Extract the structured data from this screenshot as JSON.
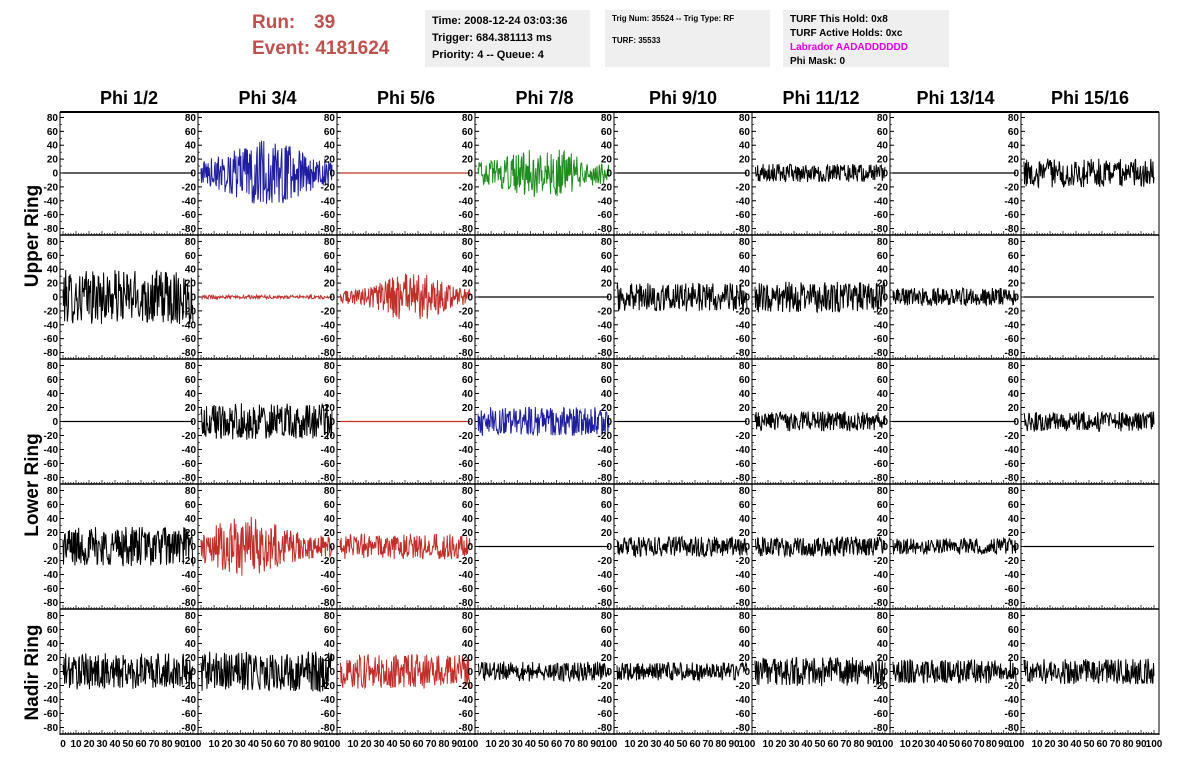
{
  "header": {
    "run_label": "Run:",
    "run_value": "39",
    "event_label": "Event:",
    "event_value": "4181624"
  },
  "time_box": {
    "time": "Time: 2008-12-24 03:03:36",
    "trigger": "Trigger: 684.381113 ms",
    "priority": "Priority: 4 -- Queue: 4"
  },
  "trig_box": {
    "trig": "Trig Num: 35524 -- Trig Type: RF",
    "turf": "TURF: 35533"
  },
  "turf_box": {
    "this_hold": "TURF This Hold: 0x8",
    "active_holds": "TURF Active Holds: 0xc",
    "labrador": "Labrador AADADDDDDD",
    "phi_mask": "Phi Mask: 0"
  },
  "colors": {
    "header_red": "#c0504d",
    "labrador_magenta": "#e000e0",
    "trace_black": "#000000",
    "trace_blue": "#1f1f9e",
    "trace_red": "#c0302b",
    "trace_green": "#1e8c1e"
  },
  "chart_data": {
    "type": "line",
    "columns": [
      "Phi 1/2",
      "Phi 3/4",
      "Phi 5/6",
      "Phi 7/8",
      "Phi 9/10",
      "Phi 11/12",
      "Phi 13/14",
      "Phi 15/16"
    ],
    "rows": [
      "Upper Ring",
      "Upper Ring",
      "Lower Ring",
      "Lower Ring",
      "Nadir Ring"
    ],
    "row_groups": [
      "Upper Ring",
      "Lower Ring",
      "Nadir Ring"
    ],
    "ylim": [
      -85,
      85
    ],
    "xlim": [
      0,
      100
    ],
    "y_ticks": [
      80,
      60,
      40,
      20,
      0,
      -20,
      -40,
      -60,
      -80
    ],
    "x_ticks": [
      0,
      10,
      20,
      30,
      40,
      50,
      60,
      70,
      80,
      90,
      100
    ],
    "grid": false,
    "panels": [
      [
        {
          "color": "black",
          "amp": 0
        },
        {
          "color": "blue",
          "amp": 28
        },
        {
          "color": "red",
          "amp": 0
        },
        {
          "color": "green",
          "amp": 22
        },
        {
          "color": "black",
          "amp": 0
        },
        {
          "color": "black",
          "amp": 10
        },
        {
          "color": "black",
          "amp": 0
        },
        {
          "color": "black",
          "amp": 16
        }
      ],
      [
        {
          "color": "black",
          "amp": 30
        },
        {
          "color": "red",
          "amp": 2
        },
        {
          "color": "red",
          "amp": 20
        },
        {
          "color": "black",
          "amp": 0
        },
        {
          "color": "black",
          "amp": 16
        },
        {
          "color": "black",
          "amp": 17
        },
        {
          "color": "black",
          "amp": 10
        },
        {
          "color": "black",
          "amp": 0
        }
      ],
      [
        {
          "color": "black",
          "amp": 0
        },
        {
          "color": "black",
          "amp": 20
        },
        {
          "color": "red",
          "amp": 0
        },
        {
          "color": "blue",
          "amp": 16
        },
        {
          "color": "black",
          "amp": 0
        },
        {
          "color": "black",
          "amp": 11
        },
        {
          "color": "black",
          "amp": 0
        },
        {
          "color": "black",
          "amp": 11
        }
      ],
      [
        {
          "color": "black",
          "amp": 22
        },
        {
          "color": "red",
          "amp": 24
        },
        {
          "color": "red",
          "amp": 14
        },
        {
          "color": "black",
          "amp": 0
        },
        {
          "color": "black",
          "amp": 11
        },
        {
          "color": "black",
          "amp": 11
        },
        {
          "color": "black",
          "amp": 9
        },
        {
          "color": "black",
          "amp": 0
        }
      ],
      [
        {
          "color": "black",
          "amp": 20
        },
        {
          "color": "black",
          "amp": 22
        },
        {
          "color": "red",
          "amp": 19
        },
        {
          "color": "black",
          "amp": 11
        },
        {
          "color": "black",
          "amp": 10
        },
        {
          "color": "black",
          "amp": 16
        },
        {
          "color": "black",
          "amp": 13
        },
        {
          "color": "black",
          "amp": 14
        }
      ]
    ]
  }
}
